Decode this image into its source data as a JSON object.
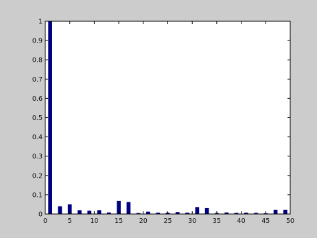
{
  "colors": {
    "figure_background": "#cccccc",
    "plot_background": "#ffffff",
    "bar": "#000080",
    "axis": "#000000"
  },
  "chart_data": {
    "type": "bar",
    "title": "",
    "xlabel": "",
    "ylabel": "",
    "xlim": [
      0,
      50
    ],
    "ylim": [
      0,
      1
    ],
    "grid": false,
    "x_ticks": [
      0,
      5,
      10,
      15,
      20,
      25,
      30,
      35,
      40,
      45,
      50
    ],
    "y_ticks": [
      0,
      0.1,
      0.2,
      0.3,
      0.4,
      0.5,
      0.6,
      0.7,
      0.8,
      0.9,
      1
    ],
    "x_tick_labels": [
      "0",
      "5",
      "10",
      "15",
      "20",
      "25",
      "30",
      "35",
      "40",
      "45",
      "50"
    ],
    "y_tick_labels": [
      "0",
      "0.1",
      "0.2",
      "0.3",
      "0.4",
      "0.5",
      "0.6",
      "0.7",
      "0.8",
      "0.9",
      "1"
    ],
    "x": [
      1,
      3,
      5,
      7,
      9,
      11,
      13,
      15,
      17,
      19,
      21,
      23,
      25,
      27,
      29,
      31,
      33,
      35,
      37,
      39,
      41,
      43,
      45,
      47,
      49
    ],
    "values": [
      1.0,
      0.04,
      0.05,
      0.02,
      0.017,
      0.02,
      0.008,
      0.068,
      0.062,
      0.005,
      0.012,
      0.007,
      0.007,
      0.01,
      0.007,
      0.035,
      0.032,
      0.005,
      0.008,
      0.006,
      0.007,
      0.006,
      0.004,
      0.022,
      0.022
    ]
  }
}
